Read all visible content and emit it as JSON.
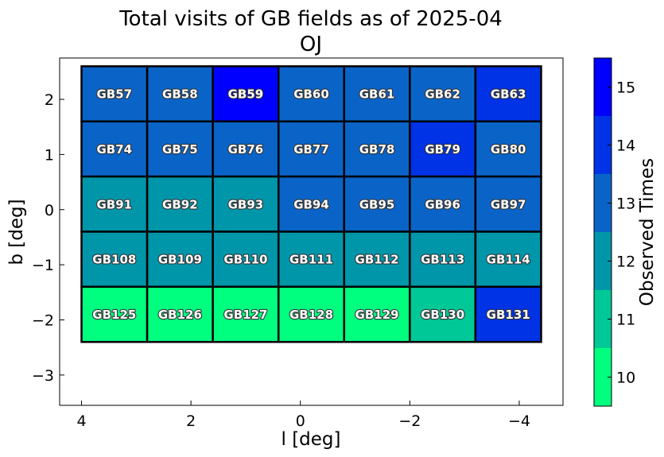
{
  "chart_data": {
    "type": "heatmap",
    "title": "Total visits of GB fields as of 2025-04",
    "subtitle": "OJ",
    "xlabel": "l [deg]",
    "ylabel": "b [deg]",
    "colorbar_label": "Observed Times",
    "xlim": [
      4.4,
      -4.8
    ],
    "ylim": [
      -3.55,
      2.75
    ],
    "xticks": [
      4,
      2,
      0,
      -2,
      -4
    ],
    "xtick_labels": [
      "4",
      "2",
      "0",
      "−2",
      "−4"
    ],
    "yticks": [
      2,
      1,
      0,
      -1,
      -2,
      -3
    ],
    "ytick_labels": [
      "2",
      "1",
      "0",
      "−1",
      "−2",
      "−3"
    ],
    "grid": false,
    "cell_width_deg": 1.2,
    "cell_height_deg": 1.0,
    "colorbar": {
      "range": [
        9.5,
        15.5
      ],
      "ticks": [
        10,
        11,
        12,
        13,
        14,
        15
      ],
      "levels": [
        {
          "min": 9.5,
          "max": 10.5,
          "color": "#00ff7f"
        },
        {
          "min": 10.5,
          "max": 11.5,
          "color": "#00c896"
        },
        {
          "min": 11.5,
          "max": 12.5,
          "color": "#0096aa"
        },
        {
          "min": 12.5,
          "max": 13.5,
          "color": "#0a64c8"
        },
        {
          "min": 13.5,
          "max": 14.5,
          "color": "#0032e6"
        },
        {
          "min": 14.5,
          "max": 15.5,
          "color": "#0000ff"
        }
      ]
    },
    "fields": [
      {
        "name": "GB57",
        "l": 3.4,
        "b": 2.1,
        "visits": 13
      },
      {
        "name": "GB58",
        "l": 2.2,
        "b": 2.1,
        "visits": 13
      },
      {
        "name": "GB59",
        "l": 1.0,
        "b": 2.1,
        "visits": 15
      },
      {
        "name": "GB60",
        "l": -0.2,
        "b": 2.1,
        "visits": 13
      },
      {
        "name": "GB61",
        "l": -1.4,
        "b": 2.1,
        "visits": 13
      },
      {
        "name": "GB62",
        "l": -2.6,
        "b": 2.1,
        "visits": 13
      },
      {
        "name": "GB63",
        "l": -3.8,
        "b": 2.1,
        "visits": 14
      },
      {
        "name": "GB74",
        "l": 3.4,
        "b": 1.1,
        "visits": 13
      },
      {
        "name": "GB75",
        "l": 2.2,
        "b": 1.1,
        "visits": 13
      },
      {
        "name": "GB76",
        "l": 1.0,
        "b": 1.1,
        "visits": 13
      },
      {
        "name": "GB77",
        "l": -0.2,
        "b": 1.1,
        "visits": 13
      },
      {
        "name": "GB78",
        "l": -1.4,
        "b": 1.1,
        "visits": 13
      },
      {
        "name": "GB79",
        "l": -2.6,
        "b": 1.1,
        "visits": 14
      },
      {
        "name": "GB80",
        "l": -3.8,
        "b": 1.1,
        "visits": 13
      },
      {
        "name": "GB91",
        "l": 3.4,
        "b": 0.1,
        "visits": 12
      },
      {
        "name": "GB92",
        "l": 2.2,
        "b": 0.1,
        "visits": 12
      },
      {
        "name": "GB93",
        "l": 1.0,
        "b": 0.1,
        "visits": 12
      },
      {
        "name": "GB94",
        "l": -0.2,
        "b": 0.1,
        "visits": 13
      },
      {
        "name": "GB95",
        "l": -1.4,
        "b": 0.1,
        "visits": 13
      },
      {
        "name": "GB96",
        "l": -2.6,
        "b": 0.1,
        "visits": 13
      },
      {
        "name": "GB97",
        "l": -3.8,
        "b": 0.1,
        "visits": 13
      },
      {
        "name": "GB108",
        "l": 3.4,
        "b": -0.9,
        "visits": 12
      },
      {
        "name": "GB109",
        "l": 2.2,
        "b": -0.9,
        "visits": 12
      },
      {
        "name": "GB110",
        "l": 1.0,
        "b": -0.9,
        "visits": 12
      },
      {
        "name": "GB111",
        "l": -0.2,
        "b": -0.9,
        "visits": 12
      },
      {
        "name": "GB112",
        "l": -1.4,
        "b": -0.9,
        "visits": 12
      },
      {
        "name": "GB113",
        "l": -2.6,
        "b": -0.9,
        "visits": 12
      },
      {
        "name": "GB114",
        "l": -3.8,
        "b": -0.9,
        "visits": 12
      },
      {
        "name": "GB125",
        "l": 3.4,
        "b": -1.9,
        "visits": 10
      },
      {
        "name": "GB126",
        "l": 2.2,
        "b": -1.9,
        "visits": 10
      },
      {
        "name": "GB127",
        "l": 1.0,
        "b": -1.9,
        "visits": 10
      },
      {
        "name": "GB128",
        "l": -0.2,
        "b": -1.9,
        "visits": 10
      },
      {
        "name": "GB129",
        "l": -1.4,
        "b": -1.9,
        "visits": 10
      },
      {
        "name": "GB130",
        "l": -2.6,
        "b": -1.9,
        "visits": 11
      },
      {
        "name": "GB131",
        "l": -3.8,
        "b": -1.9,
        "visits": 14
      }
    ]
  }
}
